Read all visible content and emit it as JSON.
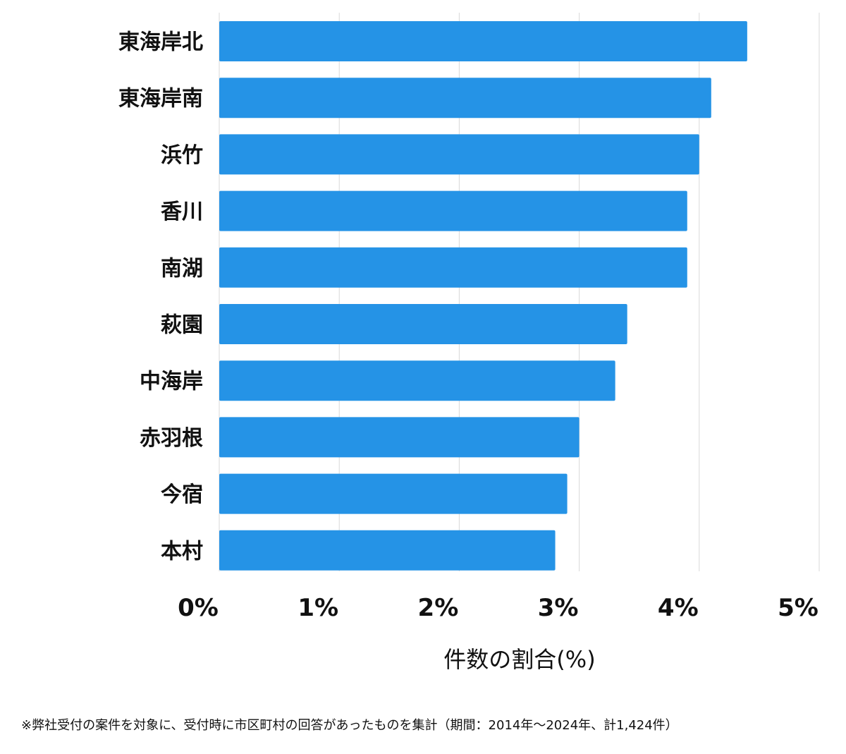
{
  "chart_data": {
    "type": "bar",
    "orientation": "horizontal",
    "categories": [
      "東海岸北",
      "東海岸南",
      "浜竹",
      "香川",
      "南湖",
      "萩園",
      "中海岸",
      "赤羽根",
      "今宿",
      "本村"
    ],
    "values": [
      4.4,
      4.1,
      4.0,
      3.9,
      3.9,
      3.4,
      3.3,
      3.0,
      2.9,
      2.8
    ],
    "xlabel": "件数の割合(%)",
    "ylabel": "",
    "xlim": [
      0,
      5
    ],
    "xticks": [
      0,
      1,
      2,
      3,
      4,
      5
    ],
    "xtick_labels": [
      "0%",
      "1%",
      "2%",
      "3%",
      "4%",
      "5%"
    ],
    "grid": "vertical",
    "bar_color": "#2593e6"
  },
  "footnote": "※弊社受付の案件を対象に、受付時に市区町村の回答があったものを集計（期間：2014年～2024年、計1,424件）"
}
